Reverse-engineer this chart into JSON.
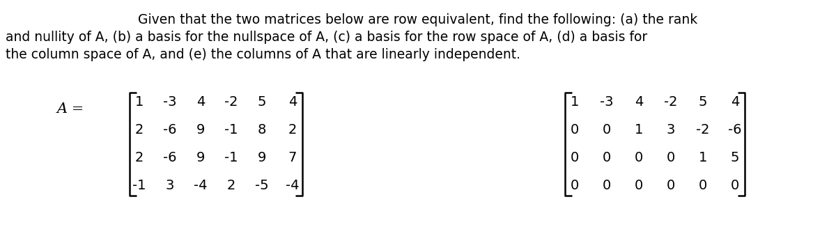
{
  "line1": "Given that the two matrices below are row equivalent, find the following: (a) the rank",
  "line2": "and nullity of A, (b) a basis for the nullspace of A, (c) a basis for the row space of A, (d) a basis for",
  "line3": "the column space of A, and (e) the columns of A that are linearly independent.",
  "matrix_A": [
    [
      1,
      -3,
      4,
      -2,
      5,
      4
    ],
    [
      2,
      -6,
      9,
      -1,
      8,
      2
    ],
    [
      2,
      -6,
      9,
      -1,
      9,
      7
    ],
    [
      -1,
      3,
      -4,
      2,
      -5,
      -4
    ]
  ],
  "matrix_R": [
    [
      1,
      -3,
      4,
      -2,
      5,
      4
    ],
    [
      0,
      0,
      1,
      3,
      -2,
      -6
    ],
    [
      0,
      0,
      0,
      0,
      1,
      5
    ],
    [
      0,
      0,
      0,
      0,
      0,
      0
    ]
  ],
  "label_A": "A =",
  "background_color": "#ffffff",
  "text_color": "#000000",
  "fontsize_text": 13.5,
  "fontsize_matrix": 14.0
}
